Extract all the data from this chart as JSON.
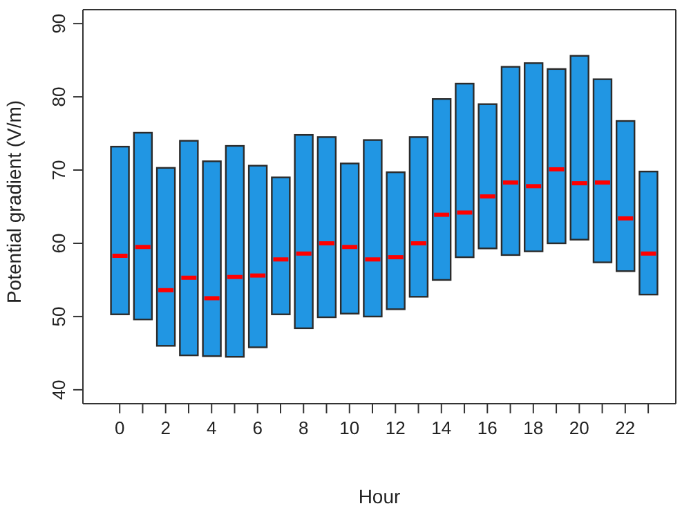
{
  "chart_data": {
    "type": "box",
    "xlabel": "Hour",
    "ylabel": "Potential gradient (V/m)",
    "x": [
      0,
      1,
      2,
      3,
      4,
      5,
      6,
      7,
      8,
      9,
      10,
      11,
      12,
      13,
      14,
      15,
      16,
      17,
      18,
      19,
      20,
      21,
      22,
      23
    ],
    "xlim": [
      -1.6,
      24.2
    ],
    "xticks": [
      0,
      {
        "value": 1,
        "label": null
      },
      2,
      {
        "value": 3,
        "label": null
      },
      4,
      {
        "value": 5,
        "label": null
      },
      6,
      {
        "value": 7,
        "label": null
      },
      8,
      {
        "value": 9,
        "label": null
      },
      10,
      {
        "value": 11,
        "label": null
      },
      12,
      {
        "value": 13,
        "label": null
      },
      14,
      {
        "value": 15,
        "label": null
      },
      16,
      {
        "value": 17,
        "label": null
      },
      18,
      {
        "value": 19,
        "label": null
      },
      20,
      {
        "value": 21,
        "label": null
      },
      22,
      {
        "value": 23,
        "label": null
      }
    ],
    "ylim": [
      38.1,
      91.9
    ],
    "yticks": [
      40,
      50,
      60,
      70,
      80,
      90
    ],
    "series": [
      {
        "color": "#2196e3",
        "boxes": [
          {
            "low": 50.3,
            "q1": 50.3,
            "median": 58.3,
            "q3": 73.2,
            "high": 73.2
          },
          {
            "low": 49.6,
            "q1": 49.6,
            "median": 59.5,
            "q3": 75.1,
            "high": 75.1
          },
          {
            "low": 46.0,
            "q1": 46.0,
            "median": 53.6,
            "q3": 70.3,
            "high": 70.3
          },
          {
            "low": 44.7,
            "q1": 44.7,
            "median": 55.3,
            "q3": 74.0,
            "high": 74.0
          },
          {
            "low": 44.6,
            "q1": 44.6,
            "median": 52.5,
            "q3": 71.2,
            "high": 71.2
          },
          {
            "low": 44.5,
            "q1": 44.5,
            "median": 55.4,
            "q3": 73.3,
            "high": 73.3
          },
          {
            "low": 45.8,
            "q1": 45.8,
            "median": 55.6,
            "q3": 70.6,
            "high": 70.6
          },
          {
            "low": 50.3,
            "q1": 50.3,
            "median": 57.8,
            "q3": 69.0,
            "high": 69.0
          },
          {
            "low": 48.4,
            "q1": 48.4,
            "median": 58.6,
            "q3": 74.8,
            "high": 74.8
          },
          {
            "low": 49.9,
            "q1": 49.9,
            "median": 60.0,
            "q3": 74.5,
            "high": 74.5
          },
          {
            "low": 50.4,
            "q1": 50.4,
            "median": 59.5,
            "q3": 70.9,
            "high": 70.9
          },
          {
            "low": 50.0,
            "q1": 50.0,
            "median": 57.8,
            "q3": 74.1,
            "high": 74.1
          },
          {
            "low": 51.0,
            "q1": 51.0,
            "median": 58.1,
            "q3": 69.7,
            "high": 69.7
          },
          {
            "low": 52.7,
            "q1": 52.7,
            "median": 60.0,
            "q3": 74.5,
            "high": 74.5
          },
          {
            "low": 55.0,
            "q1": 55.0,
            "median": 63.9,
            "q3": 79.7,
            "high": 79.7
          },
          {
            "low": 58.1,
            "q1": 58.1,
            "median": 64.2,
            "q3": 81.8,
            "high": 81.8
          },
          {
            "low": 59.3,
            "q1": 59.3,
            "median": 66.4,
            "q3": 79.0,
            "high": 79.0
          },
          {
            "low": 58.4,
            "q1": 58.4,
            "median": 68.3,
            "q3": 84.1,
            "high": 84.1
          },
          {
            "low": 58.9,
            "q1": 58.9,
            "median": 67.8,
            "q3": 84.6,
            "high": 84.6
          },
          {
            "low": 60.0,
            "q1": 60.0,
            "median": 70.1,
            "q3": 83.8,
            "high": 83.8
          },
          {
            "low": 60.5,
            "q1": 60.5,
            "median": 68.2,
            "q3": 85.6,
            "high": 85.6
          },
          {
            "low": 57.4,
            "q1": 57.4,
            "median": 68.3,
            "q3": 82.4,
            "high": 82.4
          },
          {
            "low": 56.2,
            "q1": 56.2,
            "median": 63.4,
            "q3": 76.7,
            "high": 76.7
          },
          {
            "low": 53.0,
            "q1": 53.0,
            "median": 58.6,
            "q3": 69.8,
            "high": 69.8
          }
        ]
      }
    ]
  }
}
